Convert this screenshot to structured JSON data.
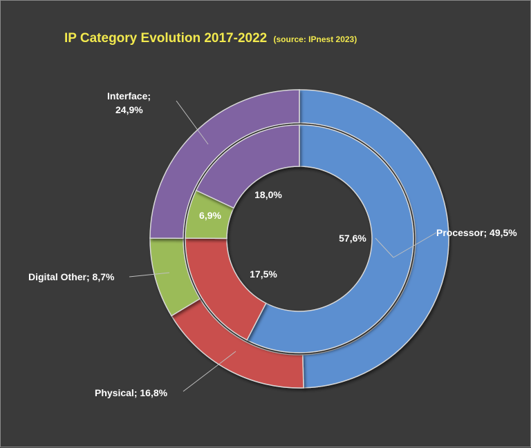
{
  "chart_data": {
    "type": "pie",
    "title": "IP Category Evolution 2017-2022",
    "subtitle": "(source: IPnest  2023)",
    "categories": [
      "Processor",
      "Physical",
      "Digital Other",
      "Interface"
    ],
    "series": [
      {
        "ring": "outer",
        "values": [
          49.5,
          16.8,
          8.7,
          24.9
        ]
      },
      {
        "ring": "inner",
        "values": [
          57.6,
          17.5,
          6.9,
          18.0
        ]
      }
    ],
    "colors": {
      "Processor": "#5b8fd0",
      "Physical": "#c9504e",
      "Digital Other": "#9bbb59",
      "Interface": "#8064a2"
    },
    "data_labels": {
      "outer": [
        "Processor; 49,5%",
        "Physical; 16,8%",
        "Digital Other; 8,7%",
        "Interface; 24,9%"
      ],
      "inner": [
        "57,6%",
        "17,5%",
        "6,9%",
        "18,0%"
      ]
    }
  }
}
